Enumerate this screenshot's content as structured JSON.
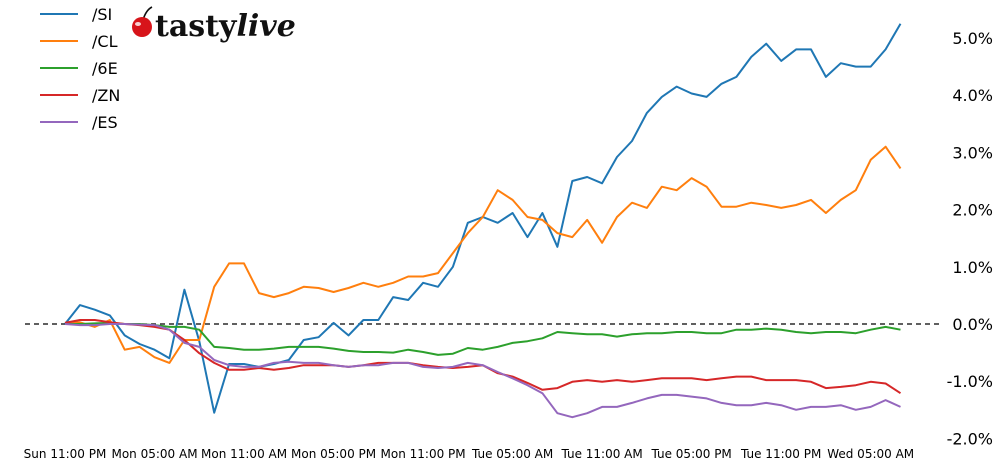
{
  "logo": {
    "text": "tastylive",
    "part1": "tasty",
    "part2": "live",
    "cherry_color": "#d7141a"
  },
  "chart_data": {
    "type": "line",
    "title": "",
    "xlabel": "",
    "ylabel": "",
    "y_unit": "%",
    "ylim": [
      -2.0,
      5.4
    ],
    "y_ticks": [
      -2.0,
      -1.0,
      0.0,
      1.0,
      2.0,
      3.0,
      4.0,
      5.0
    ],
    "y_tick_labels": [
      "-2.0%",
      "-1.0%",
      "0.0%",
      "1.0%",
      "2.0%",
      "3.0%",
      "4.0%",
      "5.0%"
    ],
    "y_axis_side": "right",
    "grid": false,
    "reference_line": {
      "y": 0.0,
      "style": "dashed",
      "color": "#000000"
    },
    "legend_position": "top-left",
    "x_tick_labels": [
      "Sun 11:00 PM",
      "Mon 05:00 AM",
      "Mon 11:00 AM",
      "Mon 05:00 PM",
      "Mon 11:00 PM",
      "Tue 05:00 AM",
      "Tue 11:00 AM",
      "Tue 05:00 PM",
      "Tue 11:00 PM",
      "Wed 05:00 AM"
    ],
    "x": [
      "Sun 11:00 PM",
      "Mon 12:00 AM",
      "Mon 01:00 AM",
      "Mon 02:00 AM",
      "Mon 03:00 AM",
      "Mon 04:00 AM",
      "Mon 05:00 AM",
      "Mon 06:00 AM",
      "Mon 07:00 AM",
      "Mon 08:00 AM",
      "Mon 09:00 AM",
      "Mon 10:00 AM",
      "Mon 11:00 AM",
      "Mon 12:00 PM",
      "Mon 01:00 PM",
      "Mon 02:00 PM",
      "Mon 03:00 PM",
      "Mon 04:00 PM",
      "Mon 05:00 PM",
      "Mon 06:00 PM",
      "Mon 07:00 PM",
      "Mon 08:00 PM",
      "Mon 09:00 PM",
      "Mon 10:00 PM",
      "Mon 11:00 PM",
      "Tue 12:00 AM",
      "Tue 01:00 AM",
      "Tue 02:00 AM",
      "Tue 03:00 AM",
      "Tue 04:00 AM",
      "Tue 05:00 AM",
      "Tue 06:00 AM",
      "Tue 07:00 AM",
      "Tue 08:00 AM",
      "Tue 09:00 AM",
      "Tue 10:00 AM",
      "Tue 11:00 AM",
      "Tue 12:00 PM",
      "Tue 01:00 PM",
      "Tue 02:00 PM",
      "Tue 03:00 PM",
      "Tue 04:00 PM",
      "Tue 05:00 PM",
      "Tue 06:00 PM",
      "Tue 07:00 PM",
      "Tue 08:00 PM",
      "Tue 09:00 PM",
      "Tue 10:00 PM",
      "Tue 11:00 PM",
      "Wed 12:00 AM",
      "Wed 01:00 AM",
      "Wed 02:00 AM",
      "Wed 03:00 AM",
      "Wed 04:00 AM",
      "Wed 05:00 AM",
      "Wed 06:00 AM",
      "Wed 07:00 AM"
    ],
    "series": [
      {
        "name": "/SI",
        "color": "#1f77b4",
        "values": [
          0.0,
          0.33,
          0.25,
          0.15,
          -0.2,
          -0.35,
          -0.45,
          -0.6,
          0.6,
          -0.3,
          -1.55,
          -0.7,
          -0.7,
          -0.75,
          -0.7,
          -0.63,
          -0.28,
          -0.23,
          0.02,
          -0.2,
          0.07,
          0.07,
          0.47,
          0.42,
          0.72,
          0.65,
          1.0,
          1.77,
          1.87,
          1.77,
          1.94,
          1.52,
          1.94,
          1.35,
          2.5,
          2.57,
          2.46,
          2.92,
          3.2,
          3.69,
          3.97,
          4.15,
          4.03,
          3.97,
          4.2,
          4.32,
          4.67,
          4.9,
          4.6,
          4.8,
          4.8,
          4.32,
          4.56,
          4.5,
          4.5,
          4.8,
          5.25
        ]
      },
      {
        "name": "/CL",
        "color": "#ff7f0e",
        "values": [
          0.02,
          0.03,
          -0.05,
          0.07,
          -0.45,
          -0.4,
          -0.58,
          -0.68,
          -0.28,
          -0.28,
          0.65,
          1.06,
          1.06,
          0.54,
          0.47,
          0.54,
          0.65,
          0.63,
          0.56,
          0.63,
          0.72,
          0.65,
          0.72,
          0.83,
          0.83,
          0.89,
          1.24,
          1.59,
          1.87,
          2.34,
          2.17,
          1.87,
          1.82,
          1.59,
          1.52,
          1.82,
          1.42,
          1.87,
          2.12,
          2.03,
          2.4,
          2.34,
          2.55,
          2.4,
          2.05,
          2.05,
          2.12,
          2.08,
          2.03,
          2.08,
          2.17,
          1.94,
          2.17,
          2.34,
          2.87,
          3.1,
          2.72
        ]
      },
      {
        "name": "/6E",
        "color": "#2ca02c",
        "values": [
          0.0,
          0.0,
          0.01,
          0.02,
          0.0,
          0.0,
          -0.02,
          -0.05,
          -0.05,
          -0.1,
          -0.4,
          -0.42,
          -0.45,
          -0.45,
          -0.43,
          -0.4,
          -0.4,
          -0.4,
          -0.43,
          -0.47,
          -0.49,
          -0.49,
          -0.5,
          -0.45,
          -0.49,
          -0.54,
          -0.52,
          -0.42,
          -0.45,
          -0.4,
          -0.33,
          -0.3,
          -0.25,
          -0.14,
          -0.16,
          -0.18,
          -0.18,
          -0.22,
          -0.18,
          -0.16,
          -0.16,
          -0.14,
          -0.14,
          -0.16,
          -0.16,
          -0.1,
          -0.1,
          -0.08,
          -0.1,
          -0.14,
          -0.16,
          -0.14,
          -0.14,
          -0.16,
          -0.1,
          -0.05,
          -0.1
        ]
      },
      {
        "name": "/ZN",
        "color": "#d62728",
        "values": [
          0.02,
          0.07,
          0.07,
          0.03,
          0.0,
          -0.02,
          -0.05,
          -0.1,
          -0.28,
          -0.51,
          -0.68,
          -0.8,
          -0.8,
          -0.77,
          -0.8,
          -0.77,
          -0.72,
          -0.72,
          -0.72,
          -0.75,
          -0.72,
          -0.68,
          -0.68,
          -0.68,
          -0.72,
          -0.75,
          -0.77,
          -0.75,
          -0.72,
          -0.86,
          -0.92,
          -1.03,
          -1.15,
          -1.12,
          -1.01,
          -0.98,
          -1.01,
          -0.98,
          -1.01,
          -0.98,
          -0.95,
          -0.95,
          -0.95,
          -0.98,
          -0.95,
          -0.92,
          -0.92,
          -0.98,
          -0.98,
          -0.98,
          -1.01,
          -1.12,
          -1.1,
          -1.07,
          -1.01,
          -1.04,
          -1.21
        ]
      },
      {
        "name": "/ES",
        "color": "#9467bd",
        "values": [
          0.0,
          -0.02,
          -0.02,
          0.0,
          0.0,
          -0.01,
          -0.02,
          -0.1,
          -0.33,
          -0.4,
          -0.63,
          -0.72,
          -0.75,
          -0.75,
          -0.68,
          -0.66,
          -0.68,
          -0.68,
          -0.72,
          -0.75,
          -0.72,
          -0.72,
          -0.68,
          -0.68,
          -0.75,
          -0.77,
          -0.75,
          -0.68,
          -0.72,
          -0.84,
          -0.95,
          -1.07,
          -1.21,
          -1.56,
          -1.63,
          -1.56,
          -1.45,
          -1.45,
          -1.38,
          -1.3,
          -1.24,
          -1.24,
          -1.27,
          -1.3,
          -1.38,
          -1.42,
          -1.42,
          -1.38,
          -1.42,
          -1.5,
          -1.45,
          -1.45,
          -1.42,
          -1.5,
          -1.45,
          -1.33,
          -1.45
        ]
      }
    ]
  }
}
